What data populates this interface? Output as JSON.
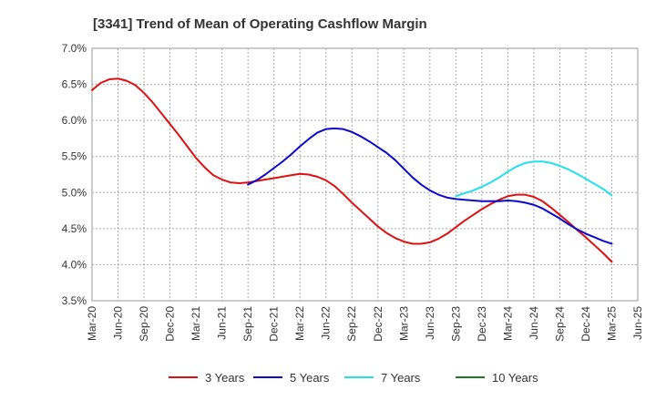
{
  "chart_data": {
    "type": "line",
    "title": "[3341]  Trend of Mean of Operating Cashflow Margin",
    "xlabel": "",
    "ylabel": "",
    "x_ticks": [
      "Mar-20",
      "Jun-20",
      "Sep-20",
      "Dec-20",
      "Mar-21",
      "Jun-21",
      "Sep-21",
      "Dec-21",
      "Mar-22",
      "Jun-22",
      "Sep-22",
      "Dec-22",
      "Mar-23",
      "Jun-23",
      "Sep-23",
      "Dec-23",
      "Mar-24",
      "Jun-24",
      "Sep-24",
      "Dec-24",
      "Mar-25",
      "Jun-25"
    ],
    "y_ticks": [
      "3.5%",
      "4.0%",
      "4.5%",
      "5.0%",
      "5.5%",
      "6.0%",
      "6.5%",
      "7.0%"
    ],
    "ylim": [
      3.5,
      7.0
    ],
    "y_unit": "%",
    "grid": true,
    "legend_position": "bottom",
    "series": [
      {
        "name": "3 Years",
        "color": "#dd1111",
        "x": [
          "Mar-20",
          "Apr-20",
          "May-20",
          "Jun-20",
          "Jul-20",
          "Aug-20",
          "Sep-20",
          "Oct-20",
          "Nov-20",
          "Dec-20",
          "Jan-21",
          "Feb-21",
          "Mar-21",
          "Apr-21",
          "May-21",
          "Jun-21",
          "Jul-21",
          "Aug-21",
          "Sep-21",
          "Oct-21",
          "Nov-21",
          "Dec-21",
          "Jan-22",
          "Feb-22",
          "Mar-22",
          "Apr-22",
          "May-22",
          "Jun-22",
          "Jul-22",
          "Aug-22",
          "Sep-22",
          "Oct-22",
          "Nov-22",
          "Dec-22",
          "Jan-23",
          "Feb-23",
          "Mar-23",
          "Apr-23",
          "May-23",
          "Jun-23",
          "Jul-23",
          "Aug-23",
          "Sep-23",
          "Oct-23",
          "Nov-23",
          "Dec-23",
          "Jan-24",
          "Feb-24",
          "Mar-24",
          "Apr-24",
          "May-24",
          "Jun-24",
          "Jul-24",
          "Aug-24",
          "Sep-24",
          "Oct-24",
          "Nov-24",
          "Dec-24",
          "Jan-25",
          "Feb-25",
          "Mar-25"
        ],
        "values": [
          6.42,
          6.52,
          6.57,
          6.58,
          6.55,
          6.49,
          6.38,
          6.25,
          6.1,
          5.95,
          5.8,
          5.64,
          5.48,
          5.35,
          5.24,
          5.18,
          5.14,
          5.13,
          5.14,
          5.16,
          5.18,
          5.2,
          5.22,
          5.24,
          5.26,
          5.25,
          5.22,
          5.17,
          5.09,
          4.98,
          4.86,
          4.75,
          4.64,
          4.53,
          4.44,
          4.37,
          4.32,
          4.29,
          4.29,
          4.31,
          4.36,
          4.43,
          4.52,
          4.61,
          4.69,
          4.77,
          4.84,
          4.9,
          4.95,
          4.97,
          4.97,
          4.94,
          4.88,
          4.79,
          4.69,
          4.59,
          4.48,
          4.38,
          4.27,
          4.16,
          4.04
        ]
      },
      {
        "name": "5 Years",
        "color": "#0a0acc",
        "x": [
          "Sep-21",
          "Oct-21",
          "Nov-21",
          "Dec-21",
          "Jan-22",
          "Feb-22",
          "Mar-22",
          "Apr-22",
          "May-22",
          "Jun-22",
          "Jul-22",
          "Aug-22",
          "Sep-22",
          "Oct-22",
          "Nov-22",
          "Dec-22",
          "Jan-23",
          "Feb-23",
          "Mar-23",
          "Apr-23",
          "May-23",
          "Jun-23",
          "Jul-23",
          "Aug-23",
          "Sep-23",
          "Oct-23",
          "Nov-23",
          "Dec-23",
          "Jan-24",
          "Feb-24",
          "Mar-24",
          "Apr-24",
          "May-24",
          "Jun-24",
          "Jul-24",
          "Aug-24",
          "Sep-24",
          "Oct-24",
          "Nov-24",
          "Dec-24",
          "Jan-25",
          "Feb-25",
          "Mar-25"
        ],
        "values": [
          5.11,
          5.17,
          5.25,
          5.34,
          5.43,
          5.53,
          5.64,
          5.74,
          5.83,
          5.88,
          5.89,
          5.88,
          5.84,
          5.78,
          5.71,
          5.63,
          5.55,
          5.45,
          5.33,
          5.21,
          5.11,
          5.03,
          4.97,
          4.93,
          4.91,
          4.9,
          4.89,
          4.88,
          4.88,
          4.88,
          4.89,
          4.88,
          4.86,
          4.83,
          4.78,
          4.71,
          4.64,
          4.56,
          4.49,
          4.43,
          4.38,
          4.33,
          4.29
        ]
      },
      {
        "name": "7 Years",
        "color": "#22e0ee",
        "x": [
          "Sep-23",
          "Oct-23",
          "Nov-23",
          "Dec-23",
          "Jan-24",
          "Feb-24",
          "Mar-24",
          "Apr-24",
          "May-24",
          "Jun-24",
          "Jul-24",
          "Aug-24",
          "Sep-24",
          "Oct-24",
          "Nov-24",
          "Dec-24",
          "Jan-25",
          "Feb-25",
          "Mar-25"
        ],
        "values": [
          4.95,
          4.99,
          5.03,
          5.08,
          5.14,
          5.21,
          5.29,
          5.36,
          5.41,
          5.43,
          5.43,
          5.41,
          5.37,
          5.32,
          5.26,
          5.19,
          5.12,
          5.05,
          4.96
        ]
      },
      {
        "name": "10 Years",
        "color": "#1a7f1a",
        "x": [],
        "values": []
      }
    ]
  }
}
